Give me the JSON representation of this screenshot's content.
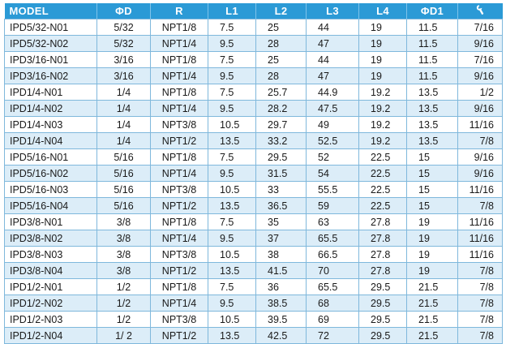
{
  "columns": [
    "MODEL",
    "ΦD",
    "R",
    "L1",
    "L2",
    "L3",
    "L4",
    "ΦD1",
    ""
  ],
  "hex_icon": "wrench-icon",
  "rows": [
    [
      "IPD5/32-N01",
      "5/32",
      "NPT1/8",
      "7.5",
      "25",
      "44",
      "19",
      "11.5",
      "7/16"
    ],
    [
      "IPD5/32-N02",
      "5/32",
      "NPT1/4",
      "9.5",
      "28",
      "47",
      "19",
      "11.5",
      "9/16"
    ],
    [
      "IPD3/16-N01",
      "3/16",
      "NPT1/8",
      "7.5",
      "25",
      "44",
      "19",
      "11.5",
      "7/16"
    ],
    [
      "IPD3/16-N02",
      "3/16",
      "NPT1/4",
      "9.5",
      "28",
      "47",
      "19",
      "11.5",
      "9/16"
    ],
    [
      "IPD1/4-N01",
      "1/4",
      "NPT1/8",
      "7.5",
      "25.7",
      "44.9",
      "19.2",
      "13.5",
      "1/2"
    ],
    [
      "IPD1/4-N02",
      "1/4",
      "NPT1/4",
      "9.5",
      "28.2",
      "47.5",
      "19.2",
      "13.5",
      "9/16"
    ],
    [
      "IPD1/4-N03",
      "1/4",
      "NPT3/8",
      "10.5",
      "29.7",
      "49",
      "19.2",
      "13.5",
      "11/16"
    ],
    [
      "IPD1/4-N04",
      "1/4",
      "NPT1/2",
      "13.5",
      "33.2",
      "52.5",
      "19.2",
      "13.5",
      "7/8"
    ],
    [
      "IPD5/16-N01",
      "5/16",
      "NPT1/8",
      "7.5",
      "29.5",
      "52",
      "22.5",
      "15",
      "9/16"
    ],
    [
      "IPD5/16-N02",
      "5/16",
      "NPT1/4",
      "9.5",
      "31.5",
      "54",
      "22.5",
      "15",
      "9/16"
    ],
    [
      "IPD5/16-N03",
      "5/16",
      "NPT3/8",
      "10.5",
      "33",
      "55.5",
      "22.5",
      "15",
      "11/16"
    ],
    [
      "IPD5/16-N04",
      "5/16",
      "NPT1/2",
      "13.5",
      "36.5",
      "59",
      "22.5",
      "15",
      "7/8"
    ],
    [
      "IPD3/8-N01",
      "3/8",
      "NPT1/8",
      "7.5",
      "35",
      "63",
      "27.8",
      "19",
      "11/16"
    ],
    [
      "IPD3/8-N02",
      "3/8",
      "NPT1/4",
      "9.5",
      "37",
      "65.5",
      "27.8",
      "19",
      "11/16"
    ],
    [
      "IPD3/8-N03",
      "3/8",
      "NPT3/8",
      "10.5",
      "38",
      "66.5",
      "27.8",
      "19",
      "11/16"
    ],
    [
      "IPD3/8-N04",
      "3/8",
      "NPT1/2",
      "13.5",
      "41.5",
      "70",
      "27.8",
      "19",
      "7/8"
    ],
    [
      "IPD1/2-N01",
      "1/2",
      "NPT1/8",
      "7.5",
      "36",
      "65.5",
      "29.5",
      "21.5",
      "7/8"
    ],
    [
      "IPD1/2-N02",
      "1/2",
      "NPT1/4",
      "9.5",
      "38.5",
      "68",
      "29.5",
      "21.5",
      "7/8"
    ],
    [
      "IPD1/2-N03",
      "1/2",
      "NPT3/8",
      "10.5",
      "39.5",
      "69",
      "29.5",
      "21.5",
      "7/8"
    ],
    [
      "IPD1/2-N04",
      "1/ 2",
      "NPT1/2",
      "13.5",
      "42.5",
      "72",
      "29.5",
      "21.5",
      "7/8"
    ]
  ]
}
